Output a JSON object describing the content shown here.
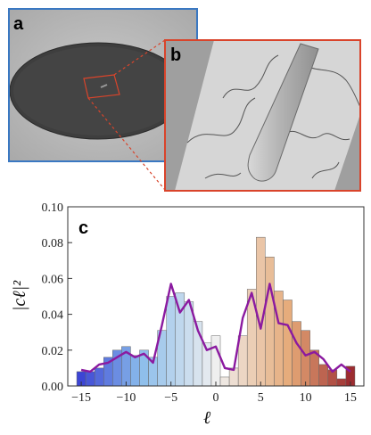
{
  "panels": {
    "a_label": "a",
    "b_label": "b",
    "c_label": "c"
  },
  "colors": {
    "panel_a_border": "#3a78c2",
    "panel_b_border": "#d9442b",
    "line": "#8b1aa0",
    "bar_low": "#2a2ad0",
    "bar_mid": "#efefef",
    "bar_high": "#8b1020"
  },
  "chart_data": {
    "type": "bar",
    "xlabel": "ℓ",
    "ylabel": "|cℓ|²",
    "xlim": [
      -16.5,
      16.5
    ],
    "ylim": [
      0,
      0.1
    ],
    "x_ticks": [
      -15,
      -10,
      -5,
      0,
      5,
      10,
      15
    ],
    "x_tick_labels": [
      "−15",
      "−10",
      "−5",
      "0",
      "5",
      "10",
      "15"
    ],
    "y_ticks": [
      0,
      0.02,
      0.04,
      0.06,
      0.08,
      0.1
    ],
    "y_tick_labels": [
      "0.00",
      "0.02",
      "0.04",
      "0.06",
      "0.08",
      "0.10"
    ],
    "grid": false,
    "legend": "none",
    "bars": {
      "x": [
        -15,
        -14,
        -13,
        -12,
        -11,
        -10,
        -9,
        -8,
        -7,
        -6,
        -5,
        -4,
        -3,
        -2,
        -1,
        0,
        1,
        2,
        3,
        4,
        5,
        6,
        7,
        8,
        9,
        10,
        11,
        12,
        13,
        14,
        15
      ],
      "values": [
        0.008,
        0.008,
        0.01,
        0.016,
        0.02,
        0.022,
        0.017,
        0.02,
        0.016,
        0.031,
        0.05,
        0.052,
        0.047,
        0.036,
        0.024,
        0.028,
        0.005,
        0.01,
        0.028,
        0.054,
        0.083,
        0.072,
        0.053,
        0.048,
        0.036,
        0.031,
        0.02,
        0.012,
        0.009,
        0.004,
        0.011
      ]
    },
    "line": {
      "x": [
        -15,
        -14,
        -13,
        -12,
        -11,
        -10,
        -9,
        -8,
        -7,
        -6,
        -5,
        -4,
        -3,
        -2,
        -1,
        0,
        1,
        2,
        3,
        4,
        5,
        6,
        7,
        8,
        9,
        10,
        11,
        12,
        13,
        14,
        15
      ],
      "values": [
        0.009,
        0.008,
        0.012,
        0.013,
        0.016,
        0.019,
        0.016,
        0.018,
        0.013,
        0.034,
        0.057,
        0.041,
        0.048,
        0.031,
        0.02,
        0.022,
        0.01,
        0.009,
        0.038,
        0.052,
        0.032,
        0.057,
        0.035,
        0.034,
        0.024,
        0.017,
        0.019,
        0.015,
        0.008,
        0.012,
        0.008
      ]
    }
  }
}
